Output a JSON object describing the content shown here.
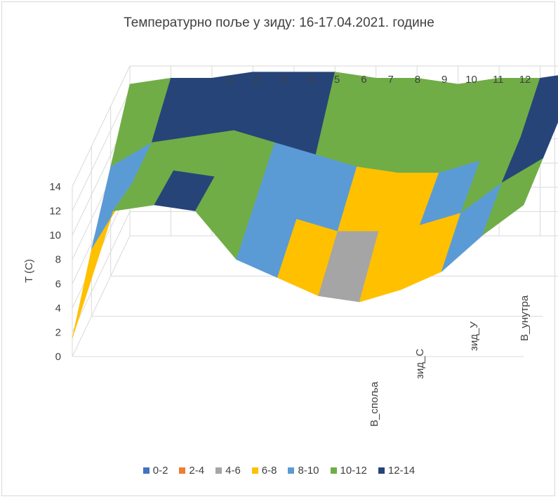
{
  "chart_data": {
    "type": "surface-3d",
    "title": "Температурно поље у зиду: 16-17.04.2021. године",
    "ylabel": "T (C)",
    "zlim": [
      0,
      14
    ],
    "z_ticks": [
      "0",
      "2",
      "4",
      "6",
      "8",
      "10",
      "12",
      "14"
    ],
    "x_categories": [
      "1",
      "2",
      "3",
      "4",
      "5",
      "6",
      "7",
      "8",
      "9",
      "10",
      "11",
      "12"
    ],
    "depth_categories": [
      "B_споља",
      "зид_C",
      "зид_У",
      "B_унутра"
    ],
    "legend_position": "bottom",
    "bands": [
      {
        "label": "0-2",
        "color": "#4472c4"
      },
      {
        "label": "2-4",
        "color": "#ed7d31"
      },
      {
        "label": "4-6",
        "color": "#a5a5a5"
      },
      {
        "label": "6-8",
        "color": "#ffc000"
      },
      {
        "label": "8-10",
        "color": "#5b9bd5"
      },
      {
        "label": "10-12",
        "color": "#70ad47"
      },
      {
        "label": "12-14",
        "color": "#264478"
      }
    ],
    "series": [
      {
        "name": "B_споља",
        "values": [
          1.5,
          12.0,
          12.5,
          12.0,
          8.0,
          6.5,
          5.0,
          4.5,
          5.5,
          7.0,
          10.0,
          12.5
        ]
      },
      {
        "name": "зид_C",
        "values": [
          5.5,
          11.0,
          12.0,
          11.5,
          9.5,
          8.0,
          7.0,
          7.0,
          7.5,
          8.5,
          11.0,
          13.0
        ]
      },
      {
        "name": "зид_У",
        "values": [
          9.0,
          11.0,
          11.5,
          12.0,
          11.0,
          10.0,
          9.0,
          8.5,
          8.5,
          9.5,
          11.5,
          13.5
        ]
      },
      {
        "name": "B_унутра",
        "values": [
          12.5,
          13.0,
          13.0,
          13.5,
          13.5,
          13.5,
          13.0,
          13.0,
          12.5,
          13.0,
          13.0,
          13.5
        ]
      }
    ]
  }
}
